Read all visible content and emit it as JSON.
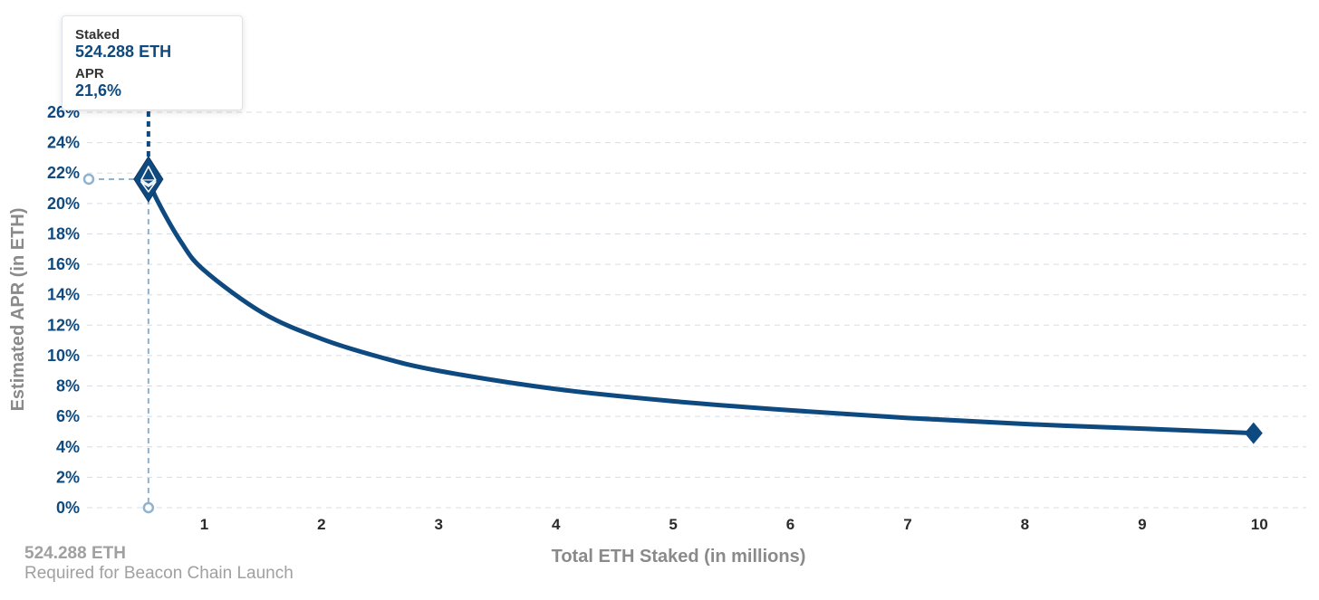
{
  "chart_data": {
    "type": "line",
    "title": "",
    "xlabel": "Total ETH Staked  (in millions)",
    "ylabel": "Estimated APR (in ETH)",
    "x_ticks": [
      1,
      2,
      3,
      4,
      5,
      6,
      7,
      8,
      9,
      10
    ],
    "y_ticks": [
      "0%",
      "2%",
      "4%",
      "6%",
      "8%",
      "10%",
      "12%",
      "14%",
      "16%",
      "18%",
      "20%",
      "22%",
      "24%",
      "26%"
    ],
    "xlim": [
      0,
      10.4
    ],
    "ylim": [
      0,
      26
    ],
    "grid": "horizontal dashed",
    "series": [
      {
        "x": [
          0.524288,
          0.6,
          0.8,
          1,
          1.5,
          2,
          2.5,
          3,
          4,
          5,
          6,
          7,
          8,
          9,
          9.95
        ],
        "y": [
          21.6,
          20.2,
          17.5,
          15.6,
          12.8,
          11.1,
          9.9,
          9.0,
          7.8,
          7.0,
          6.4,
          5.9,
          5.5,
          5.2,
          4.9
        ]
      }
    ],
    "highlight": {
      "x": 0.524288,
      "y": 21.6
    },
    "end_marker": {
      "x": 9.95,
      "y": 4.9
    },
    "colors": {
      "line": "#0e4a80",
      "guide": "#8fb3cf",
      "grid": "#d8dde3"
    }
  },
  "tooltip": {
    "staked_label": "Staked",
    "staked_value": "524.288 ETH",
    "apr_label": "APR",
    "apr_value": "21,6%"
  },
  "footnote": {
    "value": "524.288 ETH",
    "description": "Required for Beacon Chain Launch"
  }
}
